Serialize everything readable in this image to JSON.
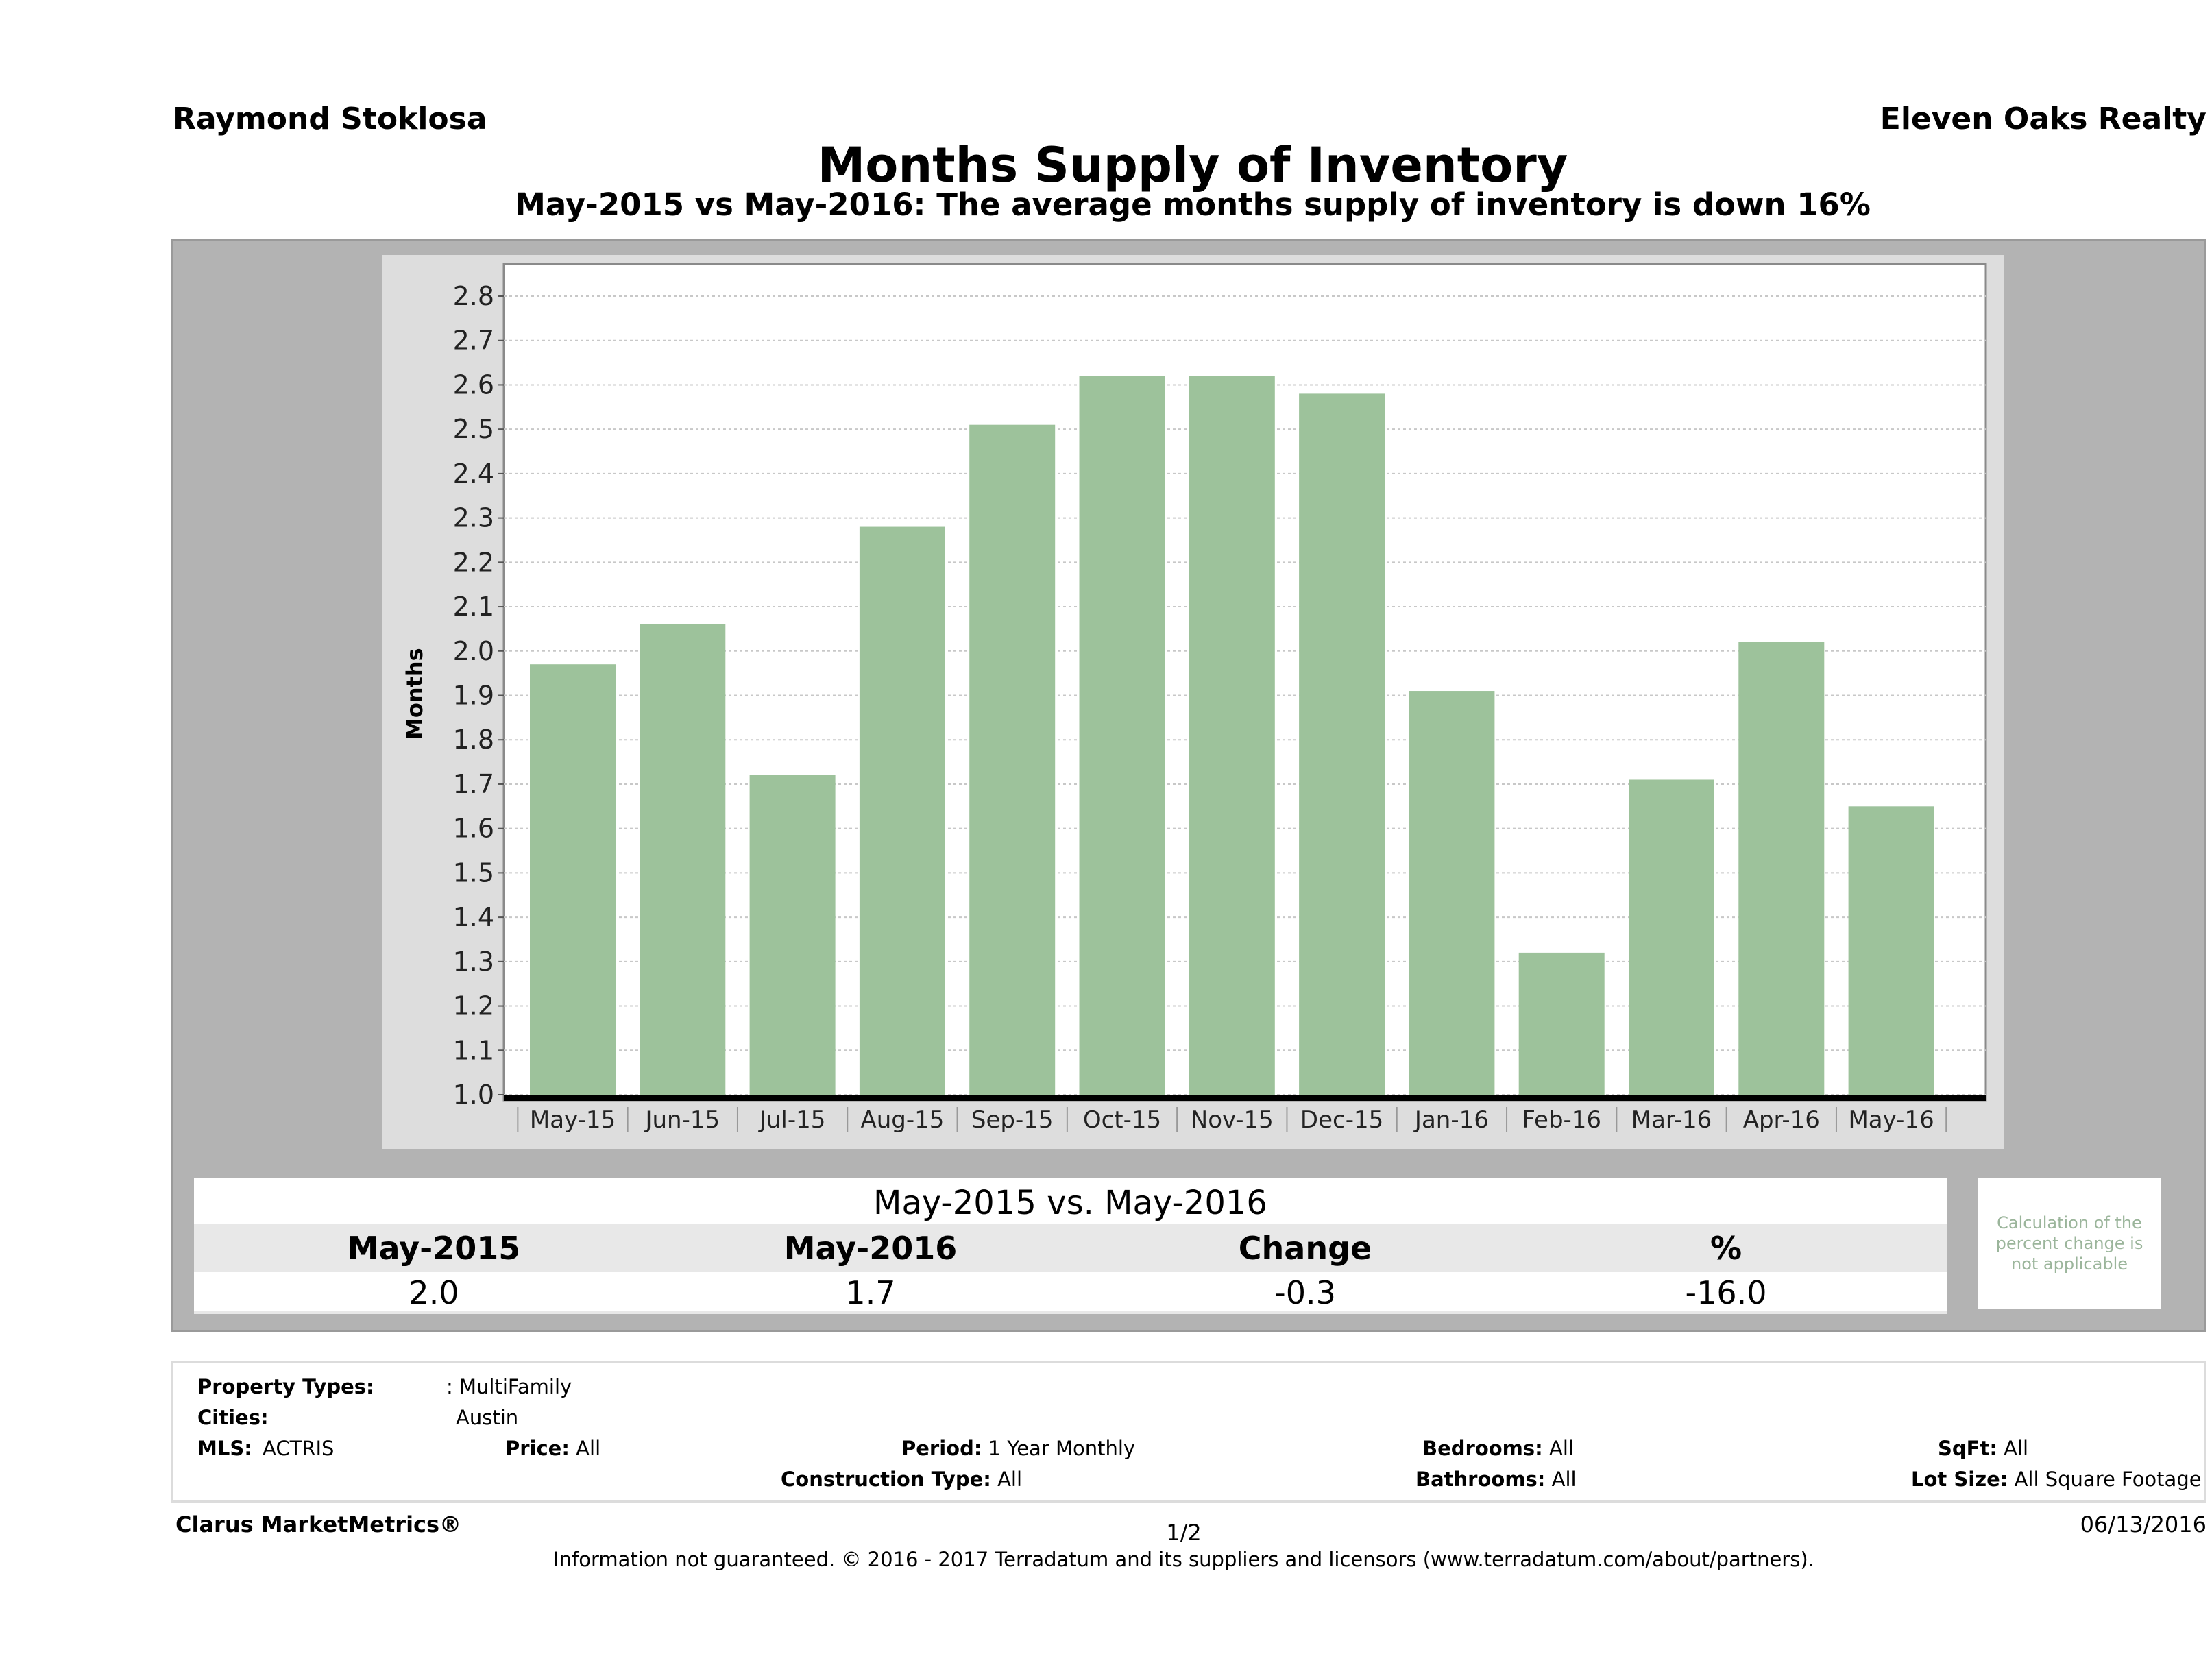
{
  "header": {
    "agent_name": "Raymond Stoklosa",
    "office_name": "Eleven Oaks Realty",
    "title": "Months Supply of Inventory",
    "subtitle": "May-2015 vs May-2016: The average months supply of inventory is down 16%"
  },
  "colors": {
    "bar": "#9dc29b",
    "panel": "#b3b3b3",
    "chart_bg": "#dddddd",
    "note_text": "#9bb59b"
  },
  "chart_data": {
    "type": "bar",
    "title": "Months Supply of Inventory",
    "xlabel": "",
    "ylabel": "Months",
    "ylim": [
      1.0,
      2.8
    ],
    "yticks": [
      "1.0",
      "1.1",
      "1.2",
      "1.3",
      "1.4",
      "1.5",
      "1.6",
      "1.7",
      "1.8",
      "1.9",
      "2.0",
      "2.1",
      "2.2",
      "2.3",
      "2.4",
      "2.5",
      "2.6",
      "2.7",
      "2.8"
    ],
    "grid": true,
    "categories": [
      "May-15",
      "Jun-15",
      "Jul-15",
      "Aug-15",
      "Sep-15",
      "Oct-15",
      "Nov-15",
      "Dec-15",
      "Jan-16",
      "Feb-16",
      "Mar-16",
      "Apr-16",
      "May-16"
    ],
    "values": [
      1.97,
      2.06,
      1.72,
      2.28,
      2.51,
      2.62,
      2.62,
      2.58,
      1.91,
      1.32,
      1.71,
      2.02,
      1.65
    ]
  },
  "summary": {
    "title": "May-2015 vs. May-2016",
    "headers": [
      "May-2015",
      "May-2016",
      "Change",
      "%"
    ],
    "values": [
      "2.0",
      "1.7",
      "-0.3",
      "-16.0"
    ],
    "note": "Calculation of the percent change is not applicable"
  },
  "criteria": {
    "property_types_label": "Property Types:",
    "property_types_value": ": MultiFamily",
    "cities_label": "Cities:",
    "cities_value": "Austin",
    "mls_label": "MLS:",
    "mls_value": "ACTRIS",
    "price_label": "Price:",
    "price_value": "All",
    "period_label": "Period:",
    "period_value": "1 Year Monthly",
    "construction_label": "Construction Type:",
    "construction_value": "All",
    "bedrooms_label": "Bedrooms:",
    "bedrooms_value": "All",
    "bathrooms_label": "Bathrooms:",
    "bathrooms_value": "All",
    "sqft_label": "SqFt:",
    "sqft_value": "All",
    "lotsize_label": "Lot Size:",
    "lotsize_value": "All Square Footage"
  },
  "footer": {
    "brand": "Clarus MarketMetrics®",
    "page": "1/2",
    "date": "06/13/2016",
    "disclaimer": "Information not guaranteed. © 2016 - 2017 Terradatum and its suppliers and licensors (www.terradatum.com/about/partners)."
  }
}
